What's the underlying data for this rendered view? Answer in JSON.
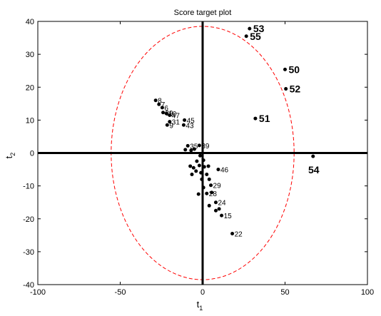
{
  "chart_data": {
    "type": "scatter",
    "title": "Score target plot",
    "xlabel": "t",
    "xlabel_sub": "1",
    "ylabel": "t",
    "ylabel_sub": "2",
    "xlim": [
      -100,
      100
    ],
    "ylim": [
      -40,
      40
    ],
    "xticks": [
      -100,
      -50,
      0,
      50,
      100
    ],
    "yticks": [
      -40,
      -30,
      -20,
      -10,
      0,
      10,
      20,
      30,
      40
    ],
    "grid": false,
    "legend": "none",
    "confidence_ellipse": {
      "center": [
        0,
        0
      ],
      "semi_axis_x": 55.5,
      "semi_axis_y": 38.5,
      "color": "#ff0000",
      "style": "dashed"
    },
    "point_color": "#000000",
    "ellipse_color": "#ff0000",
    "points": [
      {
        "label": "53",
        "x": 28.5,
        "y": 37.8,
        "big": true
      },
      {
        "label": "55",
        "x": 26.5,
        "y": 35.5,
        "big": true
      },
      {
        "label": "50",
        "x": 50.0,
        "y": 25.4,
        "big": true
      },
      {
        "label": "52",
        "x": 50.5,
        "y": 19.5,
        "big": true
      },
      {
        "label": "51",
        "x": 32.0,
        "y": 10.5,
        "big": true
      },
      {
        "label": "54",
        "x": 67.0,
        "y": -1.0,
        "big": true
      },
      {
        "label": "8",
        "x": -28.5,
        "y": 16.0
      },
      {
        "label": "7",
        "x": -26.5,
        "y": 14.8
      },
      {
        "label": "6",
        "x": -24.5,
        "y": 13.8
      },
      {
        "label": "39",
        "x": -24.0,
        "y": 12.3
      },
      {
        "label": "10",
        "x": -22.0,
        "y": 12.0
      },
      {
        "label": "47",
        "x": -20.0,
        "y": 11.5
      },
      {
        "label": "31",
        "x": -20.0,
        "y": 9.5
      },
      {
        "label": "9",
        "x": -21.5,
        "y": 8.5
      },
      {
        "label": "45",
        "x": -11.0,
        "y": 10.0
      },
      {
        "label": "43",
        "x": -11.5,
        "y": 8.5
      },
      {
        "label": "35",
        "x": -9.0,
        "y": 2.2
      },
      {
        "label": "39",
        "x": -2.0,
        "y": 2.3
      },
      {
        "label": "",
        "x": -10.5,
        "y": 1.0
      },
      {
        "label": "",
        "x": -7.0,
        "y": 0.8
      },
      {
        "label": "",
        "x": -5.0,
        "y": 1.2
      },
      {
        "label": "",
        "x": -1.5,
        "y": -0.8
      },
      {
        "label": "",
        "x": -3.5,
        "y": -2.5
      },
      {
        "label": "",
        "x": 0.5,
        "y": -2.2
      },
      {
        "label": "",
        "x": -2.0,
        "y": -3.8
      },
      {
        "label": "",
        "x": 1.0,
        "y": -4.2
      },
      {
        "label": "",
        "x": 3.5,
        "y": -4.0
      },
      {
        "label": "",
        "x": -5.5,
        "y": -4.5
      },
      {
        "label": "",
        "x": -7.5,
        "y": -4.0
      },
      {
        "label": "",
        "x": -4.0,
        "y": -5.5
      },
      {
        "label": "46",
        "x": 9.5,
        "y": -5.0
      },
      {
        "label": "",
        "x": -1.0,
        "y": -6.0
      },
      {
        "label": "",
        "x": -6.5,
        "y": -6.5
      },
      {
        "label": "",
        "x": 2.5,
        "y": -6.5
      },
      {
        "label": "",
        "x": -0.5,
        "y": -8.0
      },
      {
        "label": "",
        "x": 4.0,
        "y": -8.0
      },
      {
        "label": "29",
        "x": 5.0,
        "y": -9.8
      },
      {
        "label": "",
        "x": 0.5,
        "y": -10.5
      },
      {
        "label": "",
        "x": -2.5,
        "y": -12.5
      },
      {
        "label": "28",
        "x": 2.5,
        "y": -12.3
      },
      {
        "label": "",
        "x": 5.5,
        "y": -12.0
      },
      {
        "label": "24",
        "x": 8.0,
        "y": -15.0
      },
      {
        "label": "",
        "x": 4.0,
        "y": -16.0
      },
      {
        "label": "",
        "x": 8.0,
        "y": -17.5
      },
      {
        "label": "",
        "x": 10.0,
        "y": -17.0
      },
      {
        "label": "15",
        "x": 11.5,
        "y": -19.0
      },
      {
        "label": "22",
        "x": 18.0,
        "y": -24.5
      }
    ]
  }
}
